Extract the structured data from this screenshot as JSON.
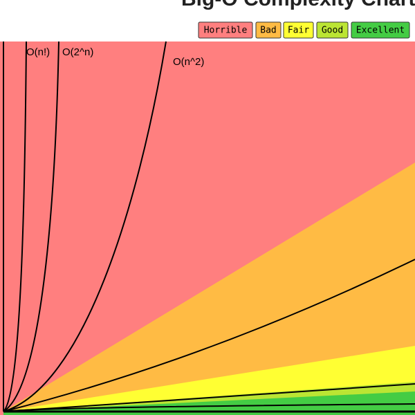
{
  "title": "Big-O Complexity Chart",
  "legend": [
    {
      "label": "Horrible",
      "color": "#ff7f7f"
    },
    {
      "label": "Bad",
      "color": "#ffbb44"
    },
    {
      "label": "Fair",
      "color": "#ffff33"
    },
    {
      "label": "Good",
      "color": "#bbe533"
    },
    {
      "label": "Excellent",
      "color": "#44cc44"
    }
  ],
  "curve_labels": [
    "O(n!)",
    "O(2^n)",
    "O(n^2)"
  ]
}
